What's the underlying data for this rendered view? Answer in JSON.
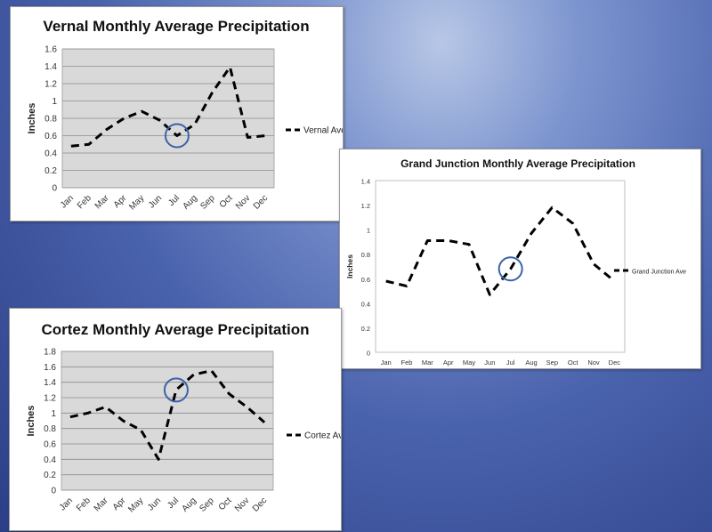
{
  "chart_data": [
    {
      "id": "vernal",
      "type": "line",
      "title": "Vernal Monthly Average Precipitation",
      "xlabel": "",
      "ylabel": "Inches",
      "categories": [
        "Jan",
        "Feb",
        "Mar",
        "Apr",
        "May",
        "Jun",
        "Jul",
        "Aug",
        "Sep",
        "Oct",
        "Nov",
        "Dec"
      ],
      "series": [
        {
          "name": "Vernal Ave",
          "values": [
            0.48,
            0.5,
            0.67,
            0.8,
            0.88,
            0.78,
            0.6,
            0.73,
            1.1,
            1.39,
            0.58,
            0.6
          ]
        }
      ],
      "ylim": [
        0,
        1.6
      ],
      "yticks": [
        "0",
        "0.2",
        "0.4",
        "0.6",
        "0.8",
        "1",
        "1.2",
        "1.4",
        "1.6"
      ],
      "highlight_category": "Jul",
      "grid": true,
      "legend": "right",
      "line_style": "dashed",
      "colors": {
        "line": "#000000",
        "plot_bg": "#d9d9d9",
        "highlight": "#3a63a8"
      }
    },
    {
      "id": "gj",
      "type": "line",
      "title": "Grand Junction Monthly Average Precipitation",
      "xlabel": "",
      "ylabel": "Inches",
      "categories": [
        "Jan",
        "Feb",
        "Mar",
        "Apr",
        "May",
        "Jun",
        "Jul",
        "Aug",
        "Sep",
        "Oct",
        "Nov",
        "Dec"
      ],
      "series": [
        {
          "name": "Grand Junction Ave",
          "values": [
            0.58,
            0.54,
            0.91,
            0.91,
            0.88,
            0.47,
            0.68,
            0.97,
            1.18,
            1.05,
            0.72,
            0.58
          ]
        }
      ],
      "ylim": [
        0,
        1.4
      ],
      "yticks": [
        "0",
        "0.2",
        "0.4",
        "0.6",
        "0.8",
        "1",
        "1.2",
        "1.4"
      ],
      "highlight_category": "Jul",
      "grid": false,
      "legend": "right",
      "line_style": "dashed",
      "colors": {
        "line": "#000000",
        "plot_bg": "#ffffff",
        "highlight": "#3a63a8"
      }
    },
    {
      "id": "cortez",
      "type": "line",
      "title": "Cortez Monthly Average Precipitation",
      "xlabel": "",
      "ylabel": "Inches",
      "categories": [
        "Jan",
        "Feb",
        "Mar",
        "Apr",
        "May",
        "Jun",
        "Jul",
        "Aug",
        "Sep",
        "Oct",
        "Nov",
        "Dec"
      ],
      "series": [
        {
          "name": "Cortez Ave",
          "values": [
            0.95,
            1.0,
            1.08,
            0.9,
            0.78,
            0.4,
            1.3,
            1.5,
            1.55,
            1.25,
            1.08,
            0.88
          ]
        }
      ],
      "ylim": [
        0,
        1.8
      ],
      "yticks": [
        "0",
        "0.2",
        "0.4",
        "0.6",
        "0.8",
        "1",
        "1.2",
        "1.4",
        "1.6",
        "1.8"
      ],
      "highlight_category": "Jul",
      "grid": true,
      "legend": "right",
      "line_style": "dashed",
      "colors": {
        "line": "#000000",
        "plot_bg": "#d9d9d9",
        "highlight": "#3a63a8"
      }
    }
  ]
}
